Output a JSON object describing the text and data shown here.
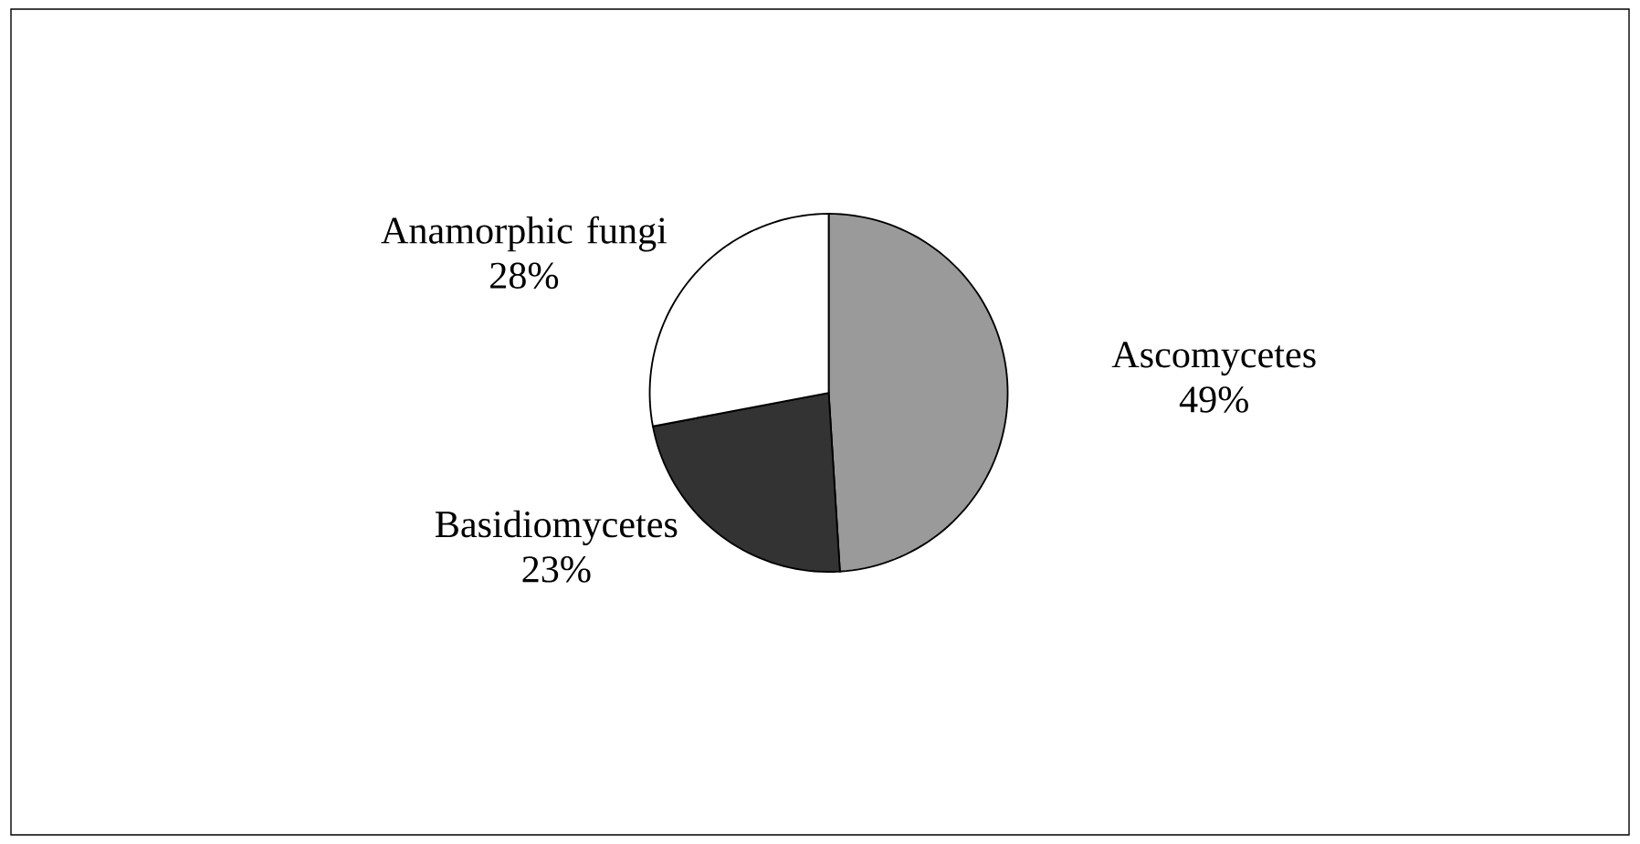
{
  "chart_data": {
    "type": "pie",
    "categories": [
      "Ascomycetes",
      "Basidiomycetes",
      "Anamorphic fungi"
    ],
    "values": [
      49,
      23,
      28
    ],
    "value_labels": [
      "49%",
      "23%",
      "28%"
    ],
    "colors": [
      "#9a9a9a",
      "#333333",
      "#ffffff"
    ]
  }
}
